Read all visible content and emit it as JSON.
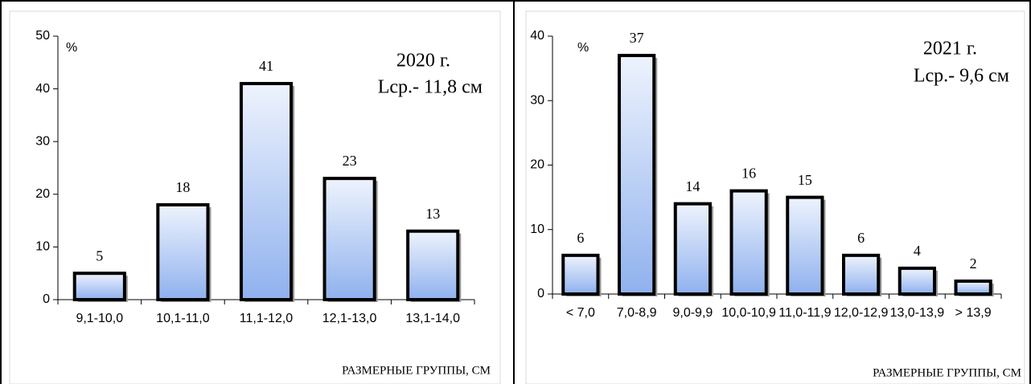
{
  "chart_data": [
    {
      "type": "bar",
      "y_label": "%",
      "annotation": [
        "2020 г.",
        "Lcp.- 11,8 см"
      ],
      "x_label": "РАЗМЕРНЫЕ ГРУППЫ, СМ",
      "categories": [
        "9,1-10,0",
        "10,1-11,0",
        "11,1-12,0",
        "12,1-13,0",
        "13,1-14,0"
      ],
      "values": [
        5,
        18,
        41,
        23,
        13
      ],
      "ylim": [
        0,
        50
      ],
      "yticks": [
        0,
        10,
        20,
        30,
        40,
        50
      ],
      "color": "#8fb1ee"
    },
    {
      "type": "bar",
      "y_label": "%",
      "annotation": [
        "2021 г.",
        "Lcp.- 9,6 см"
      ],
      "x_label": "РАЗМЕРНЫЕ ГРУППЫ, СМ",
      "categories": [
        "< 7,0",
        "7,0-8,9",
        "9,0-9,9",
        "10,0-10,9",
        "11,0-11,9",
        "12,0-12,9",
        "13,0-13,9",
        "> 13,9"
      ],
      "values": [
        6,
        37,
        14,
        16,
        15,
        6,
        4,
        2
      ],
      "ylim": [
        0,
        40
      ],
      "yticks": [
        0,
        10,
        20,
        30,
        40
      ],
      "color": "#8fb1ee"
    }
  ]
}
